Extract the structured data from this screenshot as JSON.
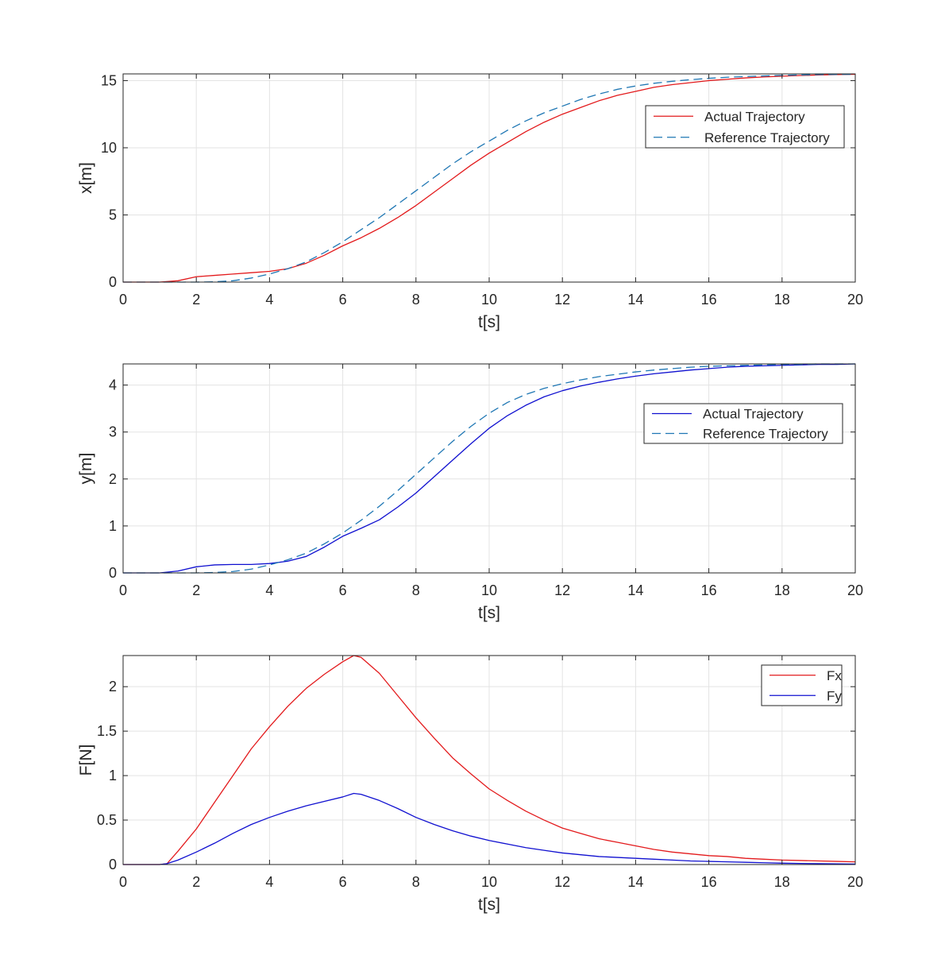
{
  "chart_data": [
    {
      "type": "line",
      "title": "",
      "xlabel": "t[s]",
      "ylabel": "x[m]",
      "xlim": [
        0,
        20
      ],
      "ylim": [
        0,
        15.5
      ],
      "xticks": [
        0,
        2,
        4,
        6,
        8,
        10,
        12,
        14,
        16,
        18,
        20
      ],
      "yticks": [
        0,
        5,
        10,
        15
      ],
      "grid": true,
      "legend_location": "top-right",
      "x": [
        0,
        0.5,
        1,
        1.5,
        2,
        2.5,
        3,
        3.5,
        4,
        4.5,
        5,
        5.5,
        6,
        6.5,
        7,
        7.5,
        8,
        8.5,
        9,
        9.5,
        10,
        10.5,
        11,
        11.5,
        12,
        12.5,
        13,
        13.5,
        14,
        14.5,
        15,
        15.5,
        16,
        16.5,
        17,
        17.5,
        18,
        18.5,
        19,
        19.5,
        20
      ],
      "series": [
        {
          "name": "Actual Trajectory",
          "color": "#e31a1c",
          "style": "solid",
          "values": [
            0,
            0,
            0,
            0.1,
            0.4,
            0.5,
            0.6,
            0.7,
            0.8,
            1.0,
            1.4,
            2.0,
            2.7,
            3.3,
            4.0,
            4.8,
            5.7,
            6.7,
            7.7,
            8.7,
            9.6,
            10.4,
            11.2,
            11.9,
            12.5,
            13.0,
            13.5,
            13.9,
            14.2,
            14.5,
            14.7,
            14.85,
            15.0,
            15.1,
            15.2,
            15.27,
            15.33,
            15.38,
            15.42,
            15.45,
            15.47
          ]
        },
        {
          "name": "Reference Trajectory",
          "color": "#1f77b4",
          "style": "dashed",
          "values": [
            0,
            0,
            0,
            0,
            0,
            0.02,
            0.1,
            0.3,
            0.6,
            1.0,
            1.5,
            2.2,
            3.0,
            3.9,
            4.8,
            5.8,
            6.8,
            7.8,
            8.8,
            9.7,
            10.5,
            11.3,
            12.0,
            12.6,
            13.1,
            13.6,
            14.0,
            14.35,
            14.6,
            14.8,
            14.95,
            15.07,
            15.17,
            15.25,
            15.3,
            15.35,
            15.39,
            15.42,
            15.45,
            15.46,
            15.47
          ]
        }
      ]
    },
    {
      "type": "line",
      "title": "",
      "xlabel": "t[s]",
      "ylabel": "y[m]",
      "xlim": [
        0,
        20
      ],
      "ylim": [
        0,
        4.45
      ],
      "xticks": [
        0,
        2,
        4,
        6,
        8,
        10,
        12,
        14,
        16,
        18,
        20
      ],
      "yticks": [
        0,
        1,
        2,
        3,
        4
      ],
      "grid": true,
      "legend_location": "right",
      "x": [
        0,
        0.5,
        1,
        1.5,
        2,
        2.5,
        3,
        3.5,
        4,
        4.5,
        5,
        5.5,
        6,
        6.5,
        7,
        7.5,
        8,
        8.5,
        9,
        9.5,
        10,
        10.5,
        11,
        11.5,
        12,
        12.5,
        13,
        13.5,
        14,
        14.5,
        15,
        15.5,
        16,
        16.5,
        17,
        17.5,
        18,
        18.5,
        19,
        19.5,
        20
      ],
      "series": [
        {
          "name": "Actual Trajectory",
          "color": "#1010d0",
          "style": "solid",
          "values": [
            0,
            0,
            0,
            0.04,
            0.13,
            0.17,
            0.18,
            0.18,
            0.2,
            0.25,
            0.35,
            0.55,
            0.78,
            0.95,
            1.13,
            1.4,
            1.7,
            2.05,
            2.4,
            2.75,
            3.08,
            3.35,
            3.57,
            3.75,
            3.88,
            3.98,
            4.06,
            4.13,
            4.19,
            4.24,
            4.28,
            4.32,
            4.35,
            4.38,
            4.4,
            4.41,
            4.42,
            4.43,
            4.44,
            4.44,
            4.45
          ]
        },
        {
          "name": "Reference Trajectory",
          "color": "#1f77b4",
          "style": "dashed",
          "values": [
            0,
            0,
            0,
            0,
            0,
            0.01,
            0.03,
            0.08,
            0.17,
            0.28,
            0.42,
            0.62,
            0.85,
            1.12,
            1.42,
            1.75,
            2.1,
            2.45,
            2.8,
            3.12,
            3.4,
            3.63,
            3.8,
            3.93,
            4.03,
            4.11,
            4.18,
            4.23,
            4.28,
            4.32,
            4.35,
            4.38,
            4.4,
            4.41,
            4.42,
            4.43,
            4.44,
            4.44,
            4.45,
            4.45,
            4.45
          ]
        }
      ]
    },
    {
      "type": "line",
      "title": "",
      "xlabel": "t[s]",
      "ylabel": "F[N]",
      "xlim": [
        0,
        20
      ],
      "ylim": [
        0,
        2.35
      ],
      "xticks": [
        0,
        2,
        4,
        6,
        8,
        10,
        12,
        14,
        16,
        18,
        20
      ],
      "yticks": [
        0,
        0.5,
        1,
        1.5,
        2
      ],
      "grid": true,
      "legend_location": "top-right",
      "x": [
        0,
        0.5,
        1,
        1.2,
        1.5,
        2,
        2.5,
        3,
        3.5,
        4,
        4.5,
        5,
        5.5,
        6,
        6.3,
        6.5,
        7,
        7.5,
        8,
        8.5,
        9,
        9.5,
        10,
        10.5,
        11,
        11.5,
        12,
        12.5,
        13,
        13.5,
        14,
        14.5,
        15,
        15.5,
        16,
        16.5,
        17,
        17.5,
        18,
        18.5,
        19,
        19.5,
        20
      ],
      "series": [
        {
          "name": "Fx",
          "color": "#e31a1c",
          "style": "solid",
          "values": [
            0,
            0,
            0,
            0.01,
            0.15,
            0.4,
            0.7,
            1.0,
            1.3,
            1.55,
            1.78,
            1.98,
            2.14,
            2.28,
            2.35,
            2.33,
            2.15,
            1.9,
            1.65,
            1.42,
            1.2,
            1.02,
            0.85,
            0.72,
            0.6,
            0.5,
            0.41,
            0.35,
            0.29,
            0.25,
            0.21,
            0.17,
            0.14,
            0.12,
            0.1,
            0.09,
            0.07,
            0.06,
            0.05,
            0.045,
            0.04,
            0.035,
            0.03
          ]
        },
        {
          "name": "Fy",
          "color": "#1010d0",
          "style": "solid",
          "values": [
            0,
            0,
            0,
            0.01,
            0.05,
            0.14,
            0.24,
            0.35,
            0.45,
            0.53,
            0.6,
            0.66,
            0.71,
            0.76,
            0.8,
            0.79,
            0.72,
            0.63,
            0.53,
            0.45,
            0.38,
            0.32,
            0.27,
            0.23,
            0.19,
            0.16,
            0.13,
            0.11,
            0.09,
            0.08,
            0.07,
            0.06,
            0.05,
            0.04,
            0.035,
            0.03,
            0.025,
            0.02,
            0.015,
            0.012,
            0.01,
            0.008,
            0.005
          ]
        }
      ]
    }
  ]
}
